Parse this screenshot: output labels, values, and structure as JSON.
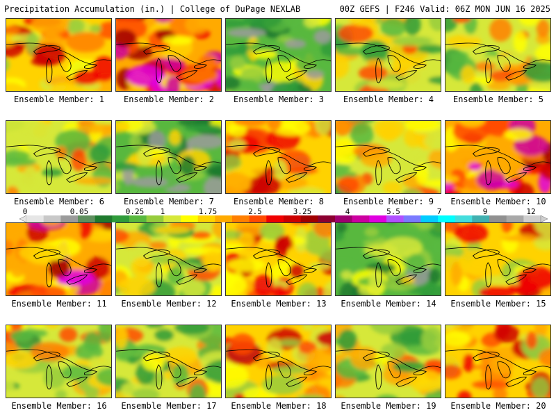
{
  "header": {
    "left": "Precipitation Accumulation (in.) | College of DuPage NEXLAB",
    "right": "00Z GEFS | F246 Valid: 06Z MON JUN 16 2025"
  },
  "legend": {
    "labels": [
      "0",
      "0.05",
      "0.25",
      "1",
      "1.75",
      "2.5",
      "3.25",
      "4",
      "5.5",
      "7",
      "9",
      "12"
    ],
    "colors": [
      "#e6e6e6",
      "#c8c8c8",
      "#9b9b9b",
      "#5e8f5e",
      "#1f7a2e",
      "#2f9b3a",
      "#58b83e",
      "#96cc3c",
      "#d6e83a",
      "#ffff00",
      "#ffd200",
      "#ffaa00",
      "#ff7f00",
      "#ff4a00",
      "#f00000",
      "#cc0000",
      "#a00000",
      "#8b0030",
      "#a00070",
      "#cc00a0",
      "#e000e0",
      "#b050ff",
      "#7a7aff",
      "#00ccff",
      "#00ffff",
      "#44dddd",
      "#40b0b0",
      "#909090",
      "#a8a8a8",
      "#cfcfcf"
    ]
  },
  "members": [
    {
      "label": "Ensemble Member: 1",
      "scheme": "wet"
    },
    {
      "label": "Ensemble Member: 2",
      "scheme": "veryWet"
    },
    {
      "label": "Ensemble Member: 3",
      "scheme": "dry"
    },
    {
      "label": "Ensemble Member: 4",
      "scheme": "mixed"
    },
    {
      "label": "Ensemble Member: 5",
      "scheme": "mixed"
    },
    {
      "label": "Ensemble Member: 6",
      "scheme": "mixed"
    },
    {
      "label": "Ensemble Member: 7",
      "scheme": "dry"
    },
    {
      "label": "Ensemble Member: 8",
      "scheme": "wet"
    },
    {
      "label": "Ensemble Member: 9",
      "scheme": "mixed"
    },
    {
      "label": "Ensemble Member: 10",
      "scheme": "veryWet"
    },
    {
      "label": "Ensemble Member: 11",
      "scheme": "veryWet"
    },
    {
      "label": "Ensemble Member: 12",
      "scheme": "mixed"
    },
    {
      "label": "Ensemble Member: 13",
      "scheme": "wet"
    },
    {
      "label": "Ensemble Member: 14",
      "scheme": "dry"
    },
    {
      "label": "Ensemble Member: 15",
      "scheme": "wet"
    },
    {
      "label": "Ensemble Member: 16",
      "scheme": "mixed"
    },
    {
      "label": "Ensemble Member: 17",
      "scheme": "mixed"
    },
    {
      "label": "Ensemble Member: 18",
      "scheme": "wet"
    },
    {
      "label": "Ensemble Member: 19",
      "scheme": "mixed"
    },
    {
      "label": "Ensemble Member: 20",
      "scheme": "wet"
    }
  ]
}
